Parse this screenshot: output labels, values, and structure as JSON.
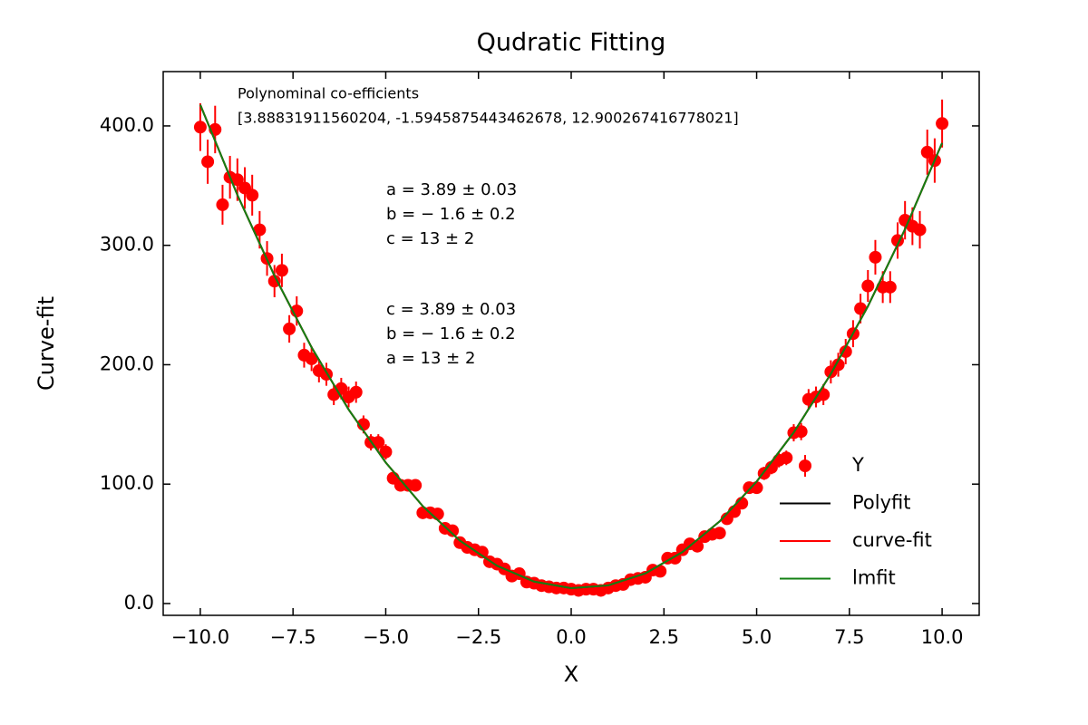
{
  "chart_data": {
    "type": "scatter",
    "title": "Qudratic Fitting",
    "x_label": "X",
    "y_label": "Curve-fit",
    "xlim": [
      -11.0,
      11.0
    ],
    "ylim": [
      -9.9,
      445.5
    ],
    "xticks": [
      {
        "value": -10,
        "label": "−10.0"
      },
      {
        "value": -7.5,
        "label": "−7.5"
      },
      {
        "value": -5,
        "label": "−5.0"
      },
      {
        "value": -2.5,
        "label": "−2.5"
      },
      {
        "value": 0,
        "label": "0.0"
      },
      {
        "value": 2.5,
        "label": "2.5"
      },
      {
        "value": 5,
        "label": "5.0"
      },
      {
        "value": 7.5,
        "label": "7.5"
      },
      {
        "value": 10,
        "label": "10.0"
      }
    ],
    "yticks": [
      {
        "value": 0,
        "label": "0.0"
      },
      {
        "value": 100,
        "label": "100.0"
      },
      {
        "value": 200,
        "label": "200.0"
      },
      {
        "value": 300,
        "label": "300.0"
      },
      {
        "value": 400,
        "label": "400.0"
      }
    ],
    "legend": "lower right",
    "annotations": [
      "Polynominal co-efficients",
      "[3.88831911560204, -1.5945875443462678, 12.900267416778021]",
      "a = 3.89 ± 0.03",
      "b = − 1.6 ± 0.2",
      "c = 13 ± 2",
      "c = 3.89 ± 0.03",
      "b = − 1.6 ± 0.2",
      "a = 13 ± 2"
    ],
    "series": [
      {
        "name": "Y",
        "type": "scatter",
        "color": "#ff0000",
        "x": [
          -10,
          -9.8,
          -9.6,
          -9.4,
          -9.2,
          -9,
          -8.8,
          -8.6,
          -8.4,
          -8.2,
          -8,
          -7.8,
          -7.6,
          -7.4,
          -7.2,
          -7,
          -6.8,
          -6.6,
          -6.4,
          -6.2,
          -6,
          -5.8,
          -5.6,
          -5.4,
          -5.2,
          -5,
          -4.8,
          -4.6,
          -4.4,
          -4.2,
          -4,
          -3.8,
          -3.6,
          -3.4,
          -3.2,
          -3,
          -2.8,
          -2.6,
          -2.4,
          -2.2,
          -2,
          -1.8,
          -1.6,
          -1.4,
          -1.2,
          -1,
          -0.8,
          -0.6,
          -0.4,
          -0.2,
          0,
          0.2,
          0.4,
          0.6,
          0.8,
          1,
          1.2,
          1.4,
          1.6,
          1.8,
          2,
          2.2,
          2.4,
          2.6,
          2.8,
          3,
          3.2,
          3.4,
          3.6,
          3.8,
          4,
          4.2,
          4.4,
          4.6,
          4.8,
          5,
          5.2,
          5.4,
          5.6,
          5.8,
          6,
          6.2,
          6.4,
          6.6,
          6.8,
          7,
          7.2,
          7.4,
          7.6,
          7.8,
          8,
          8.2,
          8.4,
          8.6,
          8.8,
          9,
          9.2,
          9.4,
          9.6,
          9.8,
          10
        ],
        "values": [
          399,
          370,
          397,
          334,
          357,
          355,
          348,
          342,
          313,
          289,
          270,
          279,
          230,
          245,
          208,
          205,
          195,
          192,
          175,
          180,
          173,
          177,
          150,
          135,
          135,
          127,
          105,
          99,
          99,
          99,
          76,
          76,
          75,
          63,
          61,
          51,
          47,
          45,
          43,
          35,
          33,
          29,
          23,
          25,
          18,
          17,
          15,
          14,
          13,
          13,
          12,
          11,
          12,
          12,
          11,
          13,
          15,
          16,
          20,
          21,
          22,
          28,
          27,
          38,
          38,
          45,
          50,
          48,
          56,
          58,
          59,
          71,
          77,
          84,
          97,
          97,
          109,
          114,
          120,
          122,
          143,
          144,
          171,
          173,
          175,
          194,
          200,
          211,
          226,
          247,
          266,
          290,
          265,
          265,
          304,
          321,
          316,
          313,
          378,
          371,
          402
        ],
        "errors": [
          20,
          18.5,
          19.9,
          16.7,
          17.9,
          17.8,
          17.4,
          17.1,
          15.7,
          14.5,
          13.5,
          14,
          11.5,
          12.3,
          10.4,
          10.3,
          9.8,
          9.6,
          8.8,
          9,
          8.7,
          8.9,
          7.5,
          6.8,
          6.8,
          6.4,
          5.3,
          5,
          5,
          5,
          3.8,
          3.8,
          3.8,
          3.2,
          3.1,
          2.6,
          2.4,
          2.3,
          2.2,
          1.8,
          1.7,
          1.5,
          1.2,
          1.3,
          0.9,
          0.9,
          0.8,
          0.7,
          0.7,
          0.7,
          0.6,
          0.6,
          0.6,
          0.6,
          0.6,
          0.7,
          0.8,
          0.8,
          1,
          1.1,
          1.1,
          1.4,
          1.4,
          1.9,
          1.9,
          2.3,
          2.5,
          2.4,
          2.8,
          2.9,
          3,
          3.6,
          3.9,
          4.2,
          4.9,
          4.9,
          5.5,
          5.7,
          6,
          6.1,
          7.2,
          7.2,
          8.6,
          8.7,
          8.8,
          9.7,
          10,
          10.6,
          11.3,
          12.4,
          13.3,
          14.5,
          13.3,
          13.3,
          15.2,
          16.1,
          15.8,
          15.7,
          18.9,
          18.6,
          20.1
        ]
      },
      {
        "name": "Polyfit",
        "type": "line",
        "color": "#000000",
        "x": [
          -10,
          -9,
          -8,
          -7,
          -6,
          -5,
          -4,
          -3,
          -2,
          -1,
          0,
          1,
          2,
          3,
          4,
          5,
          6,
          7,
          8,
          9,
          10
        ],
        "values": [
          417.65,
          342.19,
          274.49,
          214.58,
          162.44,
          118.08,
          81.49,
          52.68,
          31.64,
          18.38,
          12.9,
          15.19,
          25.26,
          43.11,
          68.73,
          102.13,
          143.3,
          192.25,
          248.97,
          313.48,
          385.75
        ]
      },
      {
        "name": "curve-fit",
        "type": "line",
        "color": "#ff0000",
        "x": [
          -10,
          -9,
          -8,
          -7,
          -6,
          -5,
          -4,
          -3,
          -2,
          -1,
          0,
          1,
          2,
          3,
          4,
          5,
          6,
          7,
          8,
          9,
          10
        ],
        "values": [
          417.65,
          342.19,
          274.49,
          214.58,
          162.44,
          118.08,
          81.49,
          52.68,
          31.64,
          18.38,
          12.9,
          15.19,
          25.26,
          43.11,
          68.73,
          102.13,
          143.3,
          192.25,
          248.97,
          313.48,
          385.75
        ]
      },
      {
        "name": "lmfit",
        "type": "line",
        "color": "#138013",
        "x": [
          -10,
          -9,
          -8,
          -7,
          -6,
          -5,
          -4,
          -3,
          -2,
          -1,
          0,
          1,
          2,
          3,
          4,
          5,
          6,
          7,
          8,
          9,
          10
        ],
        "values": [
          417.65,
          342.19,
          274.49,
          214.58,
          162.44,
          118.08,
          81.49,
          52.68,
          31.64,
          18.38,
          12.9,
          15.19,
          25.26,
          43.11,
          68.73,
          102.13,
          143.3,
          192.25,
          248.97,
          313.48,
          385.75
        ]
      }
    ]
  }
}
